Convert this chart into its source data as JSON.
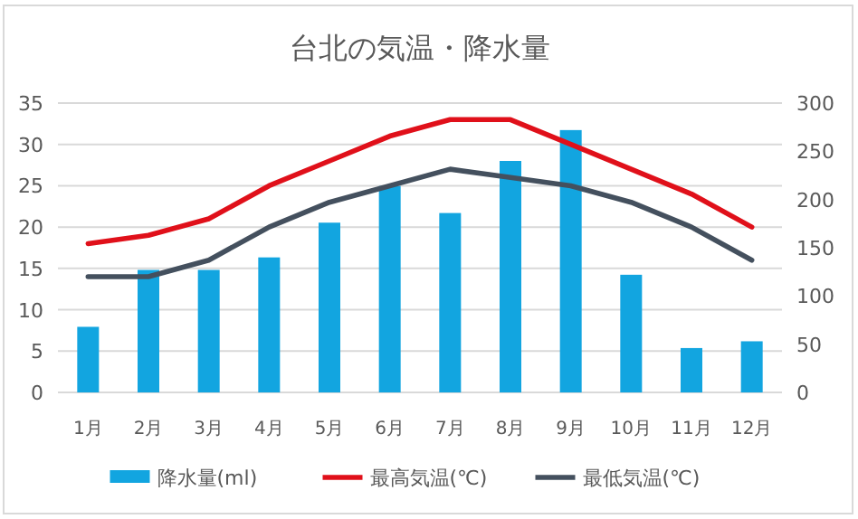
{
  "chart_data": {
    "type": "bar",
    "title": "台北の気温・降水量",
    "categories": [
      "1月",
      "2月",
      "3月",
      "4月",
      "5月",
      "6月",
      "7月",
      "8月",
      "9月",
      "10月",
      "11月",
      "12月"
    ],
    "series": [
      {
        "name": "降水量(ml)",
        "axis": "y2",
        "color": "#12a5e0",
        "values": [
          68,
          127,
          127,
          140,
          176,
          214,
          186,
          240,
          272,
          122,
          46,
          53
        ]
      },
      {
        "name": "最高気温(℃)",
        "type": "line",
        "color": "#e0101a",
        "values": [
          18,
          19,
          21,
          25,
          28,
          31,
          33,
          33,
          30,
          27,
          24,
          20
        ]
      },
      {
        "name": "最低気温(℃)",
        "type": "line",
        "color": "#44505e",
        "values": [
          14,
          14,
          16,
          20,
          23,
          25,
          27,
          26,
          25,
          23,
          20,
          16
        ]
      }
    ],
    "ylim": [
      0,
      35
    ],
    "yticks": [
      0,
      5,
      10,
      15,
      20,
      25,
      30,
      35
    ],
    "y2lim": [
      0,
      300
    ],
    "y2ticks": [
      0,
      50,
      100,
      150,
      200,
      250,
      300
    ],
    "grid": "y",
    "legend": "bottom"
  }
}
